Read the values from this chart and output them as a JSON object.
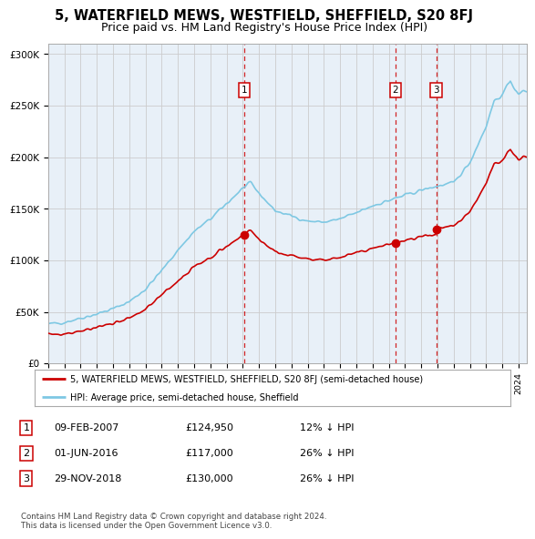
{
  "title": "5, WATERFIELD MEWS, WESTFIELD, SHEFFIELD, S20 8FJ",
  "subtitle": "Price paid vs. HM Land Registry's House Price Index (HPI)",
  "title_fontsize": 10.5,
  "subtitle_fontsize": 9,
  "hpi_color": "#7ec8e3",
  "price_color": "#cc0000",
  "vline_color": "#cc0000",
  "grid_color": "#cccccc",
  "background_color": "#ffffff",
  "plot_bg_color": "#e8f0f8",
  "ylim": [
    0,
    310000
  ],
  "yticks": [
    0,
    50000,
    100000,
    150000,
    200000,
    250000,
    300000
  ],
  "ytick_labels": [
    "£0",
    "£50K",
    "£100K",
    "£150K",
    "£200K",
    "£250K",
    "£300K"
  ],
  "xmin": 1995,
  "xmax": 2024.5,
  "transactions": [
    {
      "date": 2007.1,
      "price": 124950,
      "label": "1"
    },
    {
      "date": 2016.42,
      "price": 117000,
      "label": "2"
    },
    {
      "date": 2018.92,
      "price": 130000,
      "label": "3"
    }
  ],
  "legend_entries": [
    {
      "label": "5, WATERFIELD MEWS, WESTFIELD, SHEFFIELD, S20 8FJ (semi-detached house)",
      "color": "#cc0000"
    },
    {
      "label": "HPI: Average price, semi-detached house, Sheffield",
      "color": "#7ec8e3"
    }
  ],
  "table_rows": [
    {
      "num": "1",
      "date": "09-FEB-2007",
      "price": "£124,950",
      "pct": "12% ↓ HPI"
    },
    {
      "num": "2",
      "date": "01-JUN-2016",
      "price": "£117,000",
      "pct": "26% ↓ HPI"
    },
    {
      "num": "3",
      "date": "29-NOV-2018",
      "price": "£130,000",
      "pct": "26% ↓ HPI"
    }
  ],
  "footnote": "Contains HM Land Registry data © Crown copyright and database right 2024.\nThis data is licensed under the Open Government Licence v3.0."
}
